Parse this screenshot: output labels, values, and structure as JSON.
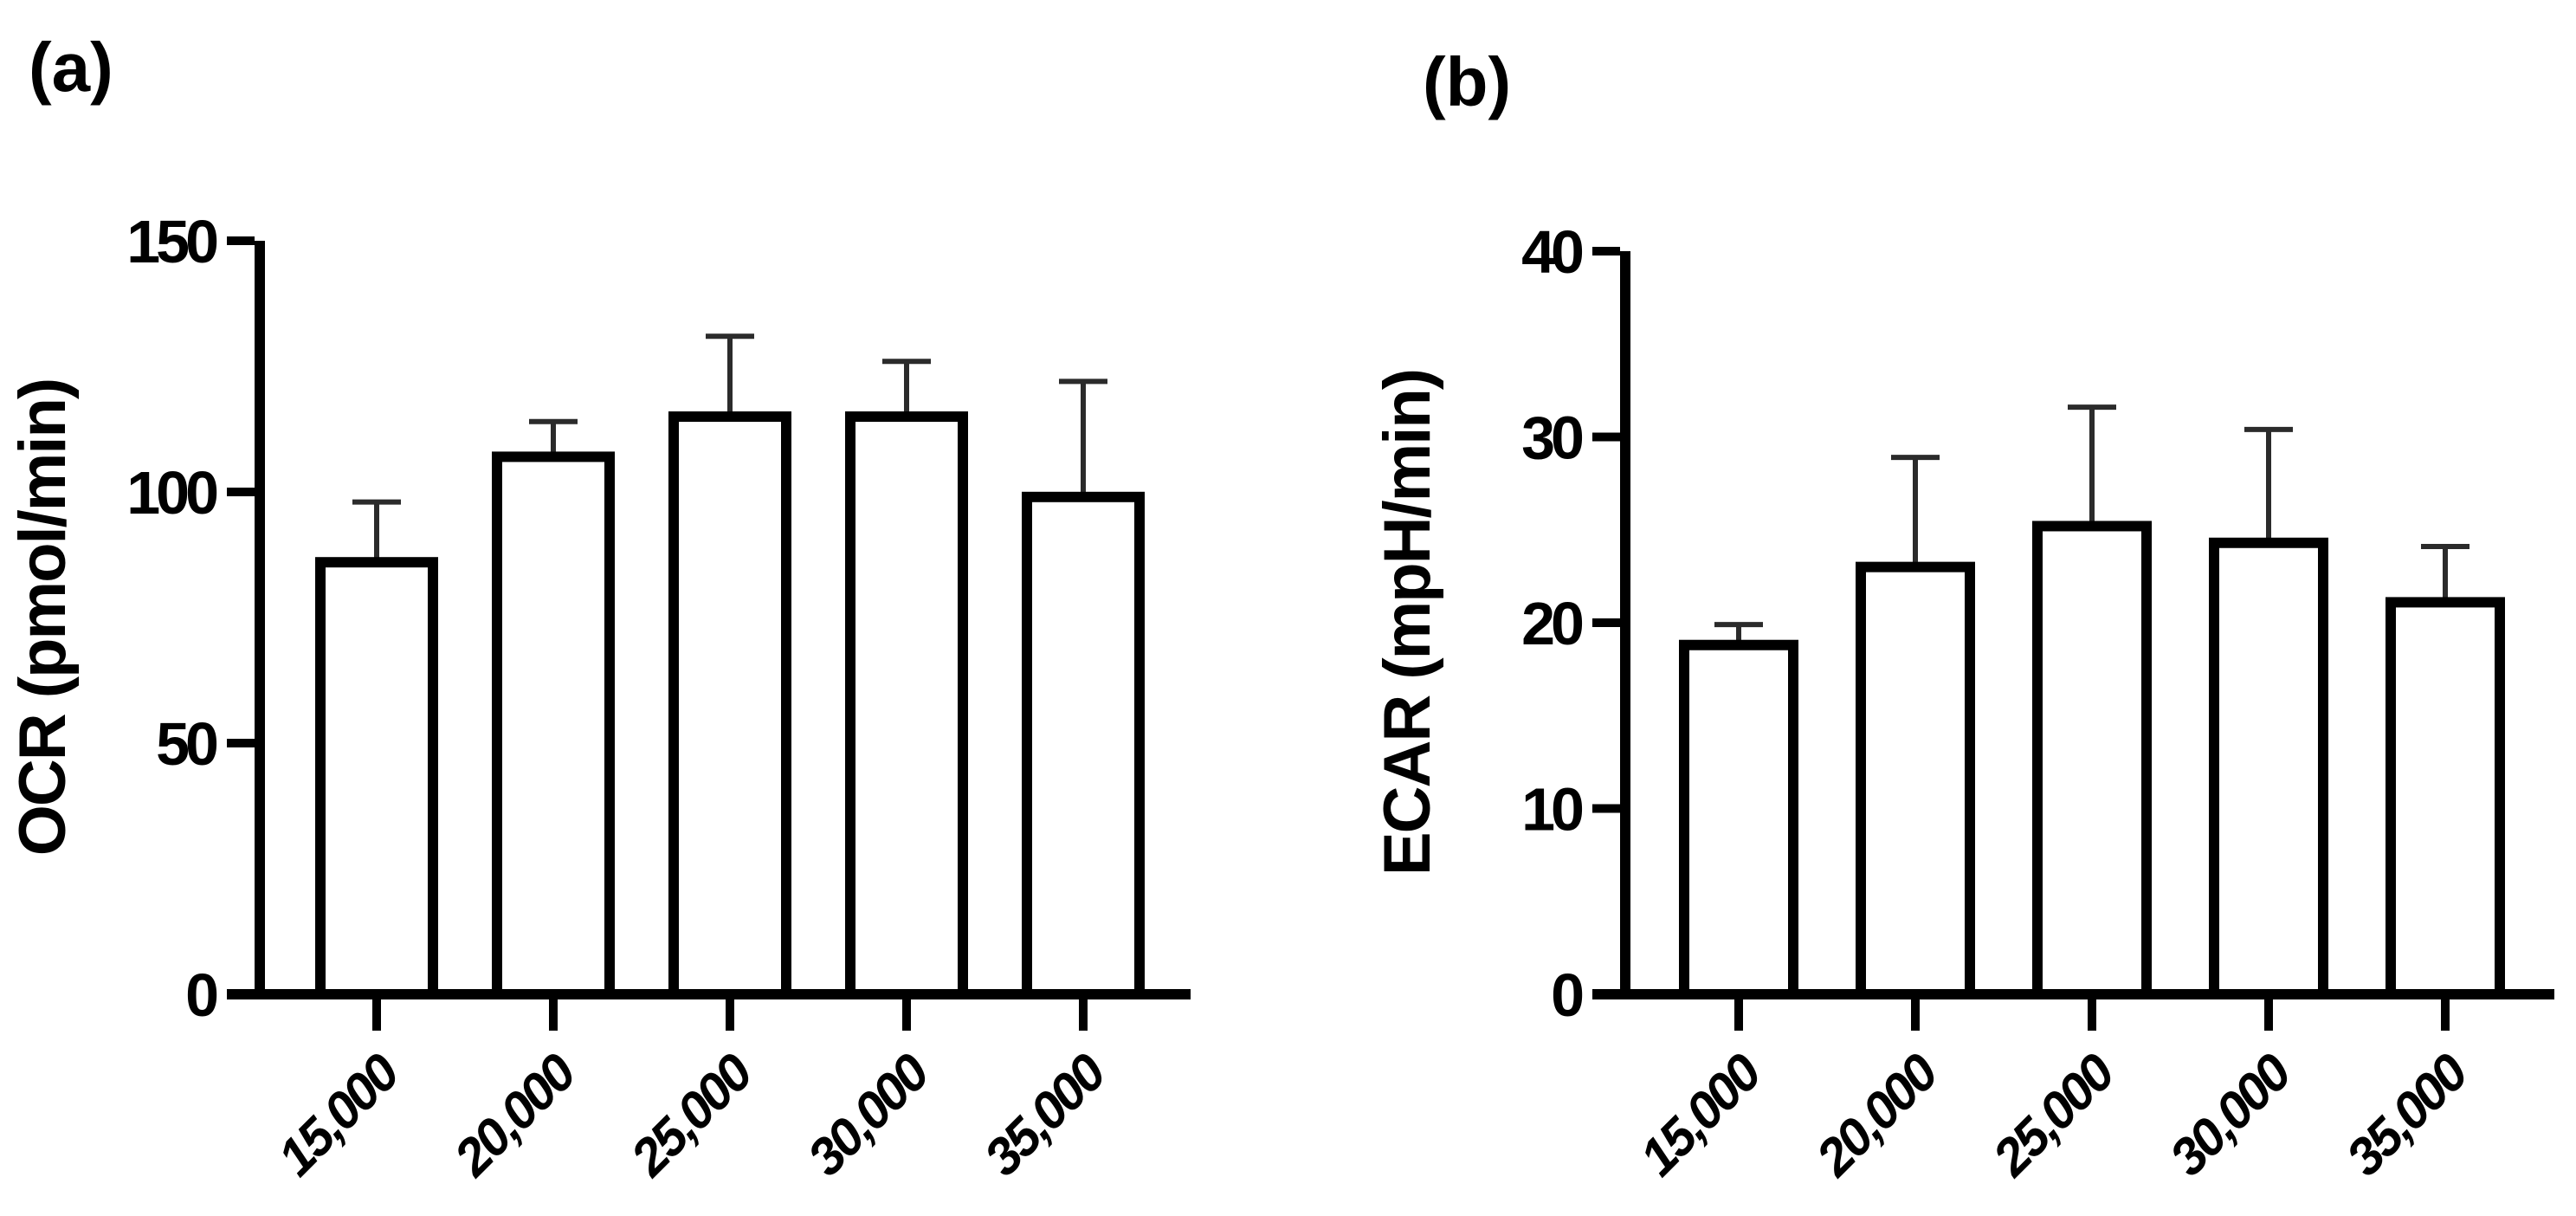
{
  "figure": {
    "background": "#ffffff",
    "axis_color": "#000000",
    "text_color": "#000000"
  },
  "chart_data": [
    {
      "type": "bar",
      "panel_label": "(a)",
      "title": "",
      "xlabel": "",
      "ylabel": "OCR (pmol/min)",
      "categories": [
        "15,000",
        "20,000",
        "25,000",
        "30,000",
        "35,000"
      ],
      "values": [
        86,
        107,
        115,
        115,
        99
      ],
      "errors_up": [
        12,
        7,
        16,
        11,
        23
      ],
      "ylim": [
        0,
        150
      ],
      "yticks": [
        0,
        50,
        100,
        150
      ],
      "grid": false,
      "legend": "none",
      "bar_fill": "#ffffff",
      "bar_stroke": "#000000",
      "error_color": "#2b2b2b"
    },
    {
      "type": "bar",
      "panel_label": "(b)",
      "title": "",
      "xlabel": "",
      "ylabel": "ECAR (mpH/min)",
      "categories": [
        "15,000",
        "20,000",
        "25,000",
        "30,000",
        "35,000"
      ],
      "values": [
        18.8,
        23,
        25.2,
        24.3,
        21.1
      ],
      "errors_up": [
        1.1,
        5.9,
        6.4,
        6.1,
        3
      ],
      "ylim": [
        0,
        40
      ],
      "yticks": [
        0,
        10,
        20,
        30,
        40
      ],
      "grid": false,
      "legend": "none",
      "bar_fill": "#ffffff",
      "bar_stroke": "#000000",
      "error_color": "#2b2b2b"
    }
  ]
}
